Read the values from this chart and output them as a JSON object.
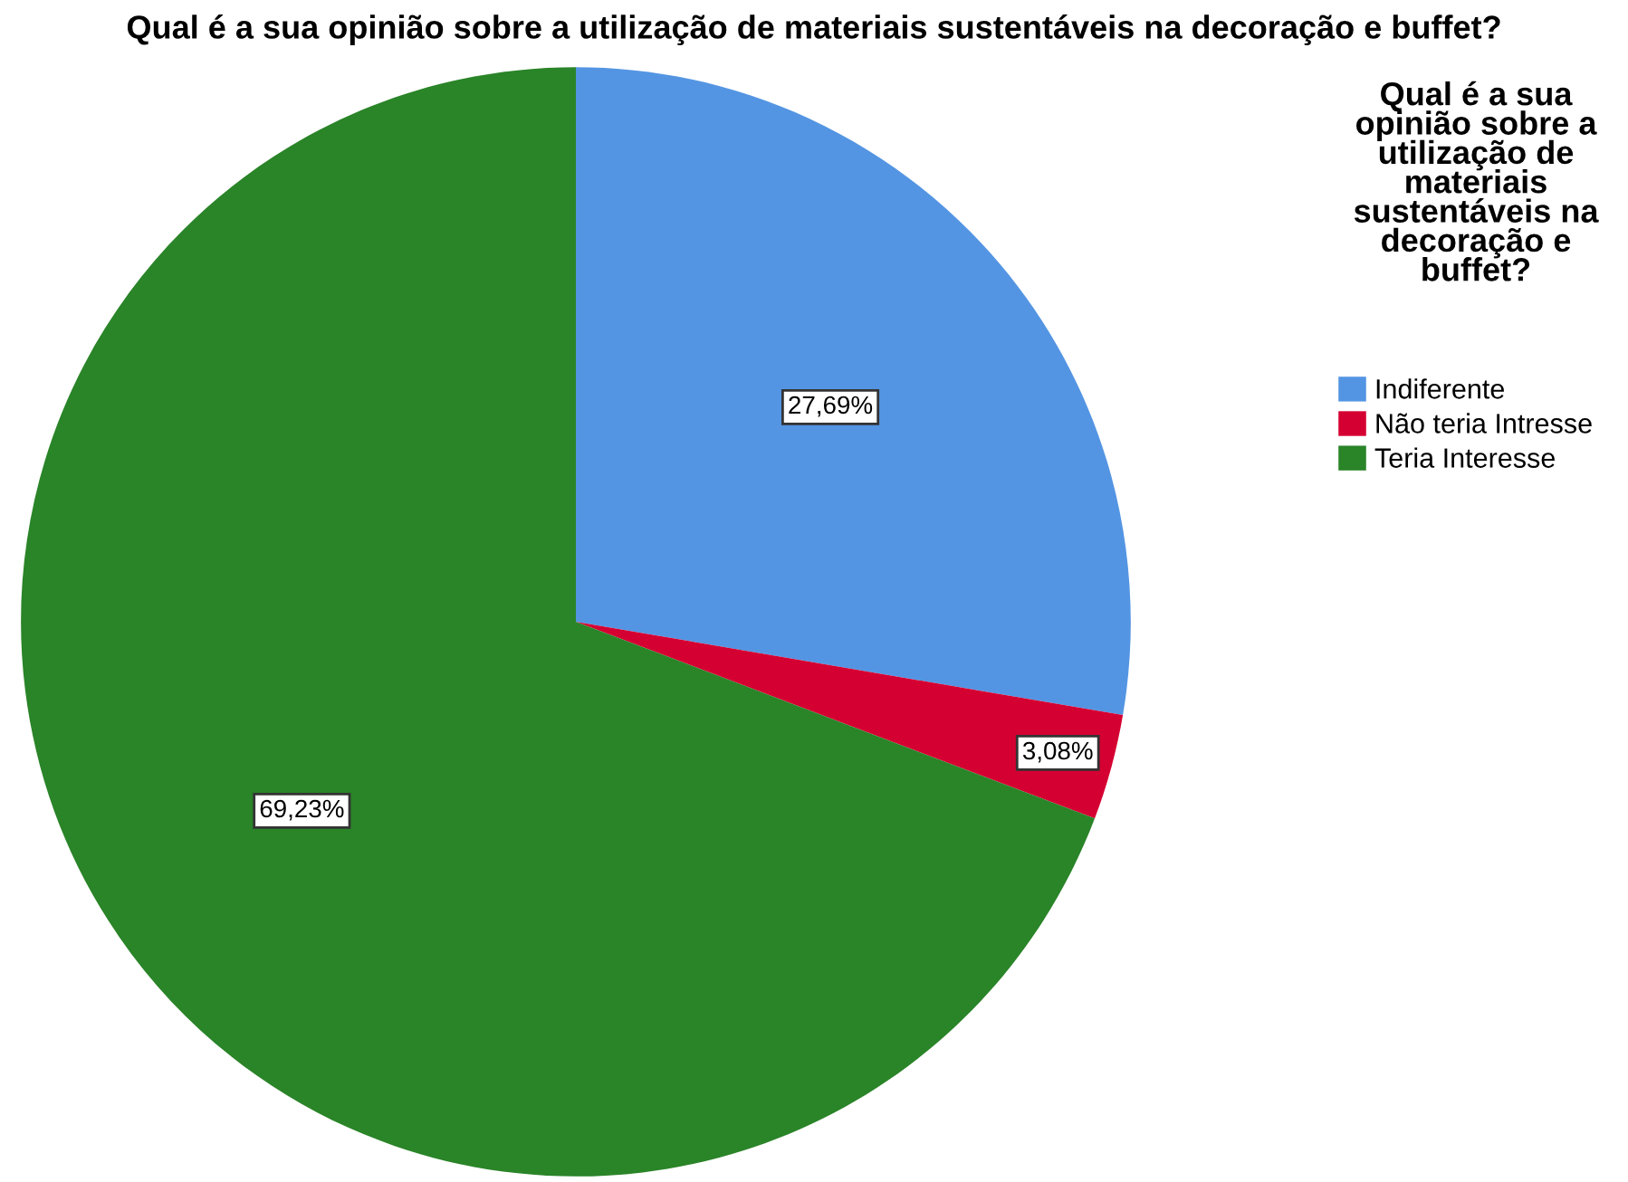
{
  "chart_data": {
    "type": "pie",
    "title": "Qual é a sua opinião sobre a utilização de materiais sustentáveis na decoração e buffet?",
    "legend_title": "Qual é a sua opinião sobre a utilização de materiais sustentáveis na decoração e buffet?",
    "categories": [
      "Indiferente",
      "Não teria Intresse",
      "Teria Interesse"
    ],
    "values": [
      27.69,
      3.08,
      69.23
    ],
    "value_labels": [
      "27,69%",
      "3,08%",
      "69,23%"
    ],
    "colors": [
      "#5495e3",
      "#d50032",
      "#2a8428"
    ],
    "legend": "right"
  }
}
